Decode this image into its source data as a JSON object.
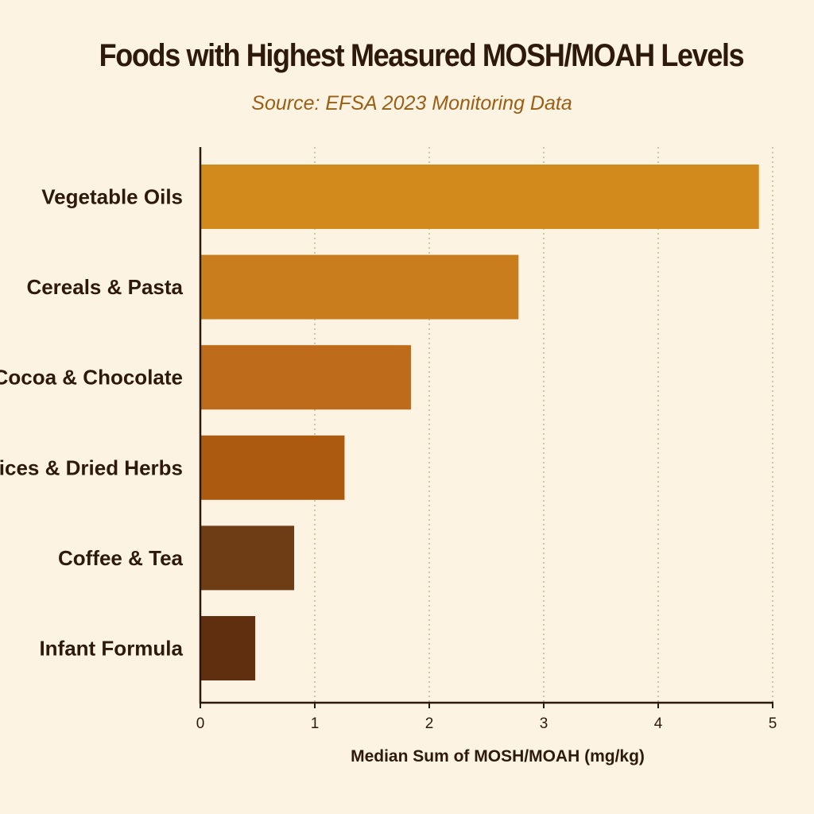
{
  "chart_data": {
    "type": "bar",
    "orientation": "horizontal",
    "title": "Foods with Highest Measured MOSH/MOAH Levels",
    "subtitle": "Source: EFSA 2023 Monitoring Data",
    "xlabel": "Median Sum of MOSH/MOAH (mg/kg)",
    "ylabel": "",
    "xlim": [
      0,
      5
    ],
    "x_ticks": [
      "0",
      "1",
      "2",
      "3",
      "4",
      "5"
    ],
    "grid": "vertical dotted",
    "categories": [
      "Vegetable Oils",
      "Cereals & Pasta",
      "Cocoa & Chocolate",
      "Spices & Dried Herbs",
      "Coffee & Tea",
      "Infant Formula"
    ],
    "values": [
      4.88,
      2.78,
      1.84,
      1.26,
      0.82,
      0.48
    ],
    "colors": [
      "#d38a1c",
      "#c97d1d",
      "#be6c1b",
      "#ab5a10",
      "#6e3d15",
      "#5f2f10"
    ]
  }
}
